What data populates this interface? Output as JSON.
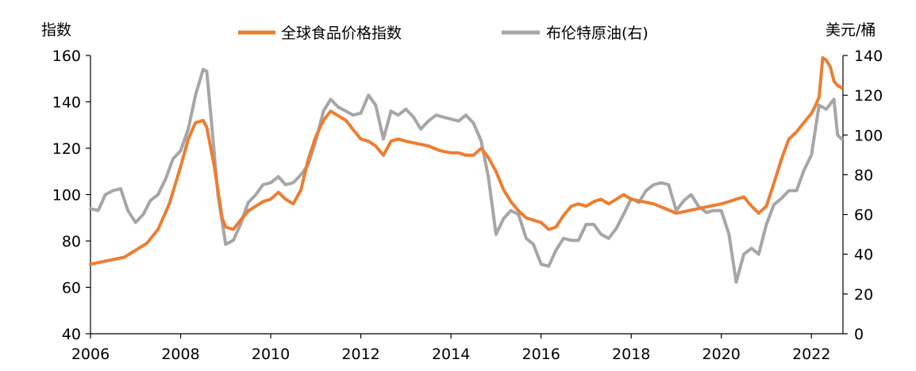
{
  "chart_data": {
    "type": "line",
    "title": "",
    "left_axis": {
      "unit_label": "指数",
      "ylim": [
        40,
        160
      ],
      "ticks": [
        "40",
        "60",
        "80",
        "100",
        "120",
        "140",
        "160"
      ]
    },
    "right_axis": {
      "unit_label": "美元/桶",
      "ylim": [
        0,
        140
      ],
      "ticks": [
        "0",
        "20",
        "40",
        "60",
        "80",
        "100",
        "120",
        "140"
      ]
    },
    "x_axis": {
      "xlim": [
        2006.0,
        2022.7
      ],
      "ticks": [
        "2006",
        "2008",
        "2010",
        "2012",
        "2014",
        "2016",
        "2018",
        "2020",
        "2022"
      ]
    },
    "grid": false,
    "legend": {
      "position": "top",
      "entries": [
        "全球食品价格指数",
        "布伦特原油(右)"
      ]
    },
    "series": [
      {
        "name": "全球食品价格指数",
        "axis": "left",
        "color": "#ED7D31",
        "x": [
          2006.0,
          2006.25,
          2006.5,
          2006.75,
          2007.0,
          2007.25,
          2007.5,
          2007.75,
          2008.0,
          2008.17,
          2008.33,
          2008.5,
          2008.58,
          2008.75,
          2008.92,
          2009.0,
          2009.17,
          2009.33,
          2009.5,
          2009.67,
          2009.83,
          2010.0,
          2010.17,
          2010.33,
          2010.5,
          2010.67,
          2010.83,
          2011.0,
          2011.17,
          2011.33,
          2011.5,
          2011.67,
          2011.83,
          2012.0,
          2012.17,
          2012.33,
          2012.5,
          2012.67,
          2012.83,
          2013.0,
          2013.25,
          2013.5,
          2013.75,
          2014.0,
          2014.17,
          2014.33,
          2014.5,
          2014.67,
          2014.83,
          2015.0,
          2015.17,
          2015.33,
          2015.5,
          2015.67,
          2015.83,
          2016.0,
          2016.17,
          2016.33,
          2016.5,
          2016.67,
          2016.83,
          2017.0,
          2017.17,
          2017.33,
          2017.5,
          2017.67,
          2017.83,
          2018.0,
          2018.25,
          2018.5,
          2018.75,
          2019.0,
          2019.25,
          2019.5,
          2019.75,
          2020.0,
          2020.17,
          2020.33,
          2020.5,
          2020.67,
          2020.83,
          2021.0,
          2021.17,
          2021.33,
          2021.5,
          2021.67,
          2021.83,
          2022.0,
          2022.08,
          2022.17,
          2022.25,
          2022.33,
          2022.42,
          2022.5,
          2022.58,
          2022.67
        ],
        "values": [
          70,
          71,
          72,
          73,
          76,
          79,
          85,
          96,
          112,
          124,
          131,
          132,
          129,
          112,
          90,
          86,
          85,
          89,
          93,
          95,
          97,
          98,
          101,
          98,
          96,
          102,
          115,
          125,
          132,
          136,
          134,
          132,
          128,
          124,
          123,
          121,
          117,
          123,
          124,
          123,
          122,
          121,
          119,
          118,
          118,
          117,
          117,
          120,
          116,
          110,
          102,
          97,
          93,
          90,
          89,
          88,
          85,
          86,
          91,
          95,
          96,
          95,
          97,
          98,
          96,
          98,
          100,
          98,
          97,
          96,
          94,
          92,
          93,
          94,
          95,
          96,
          97,
          98,
          99,
          95,
          92,
          95,
          105,
          115,
          124,
          127,
          131,
          135,
          138,
          142,
          159,
          158,
          155,
          149,
          147,
          146
        ]
      },
      {
        "name": "布伦特原油(右)",
        "axis": "right",
        "color": "#A6A6A6",
        "x": [
          2006.0,
          2006.17,
          2006.33,
          2006.5,
          2006.67,
          2006.83,
          2007.0,
          2007.17,
          2007.33,
          2007.5,
          2007.67,
          2007.83,
          2008.0,
          2008.17,
          2008.33,
          2008.5,
          2008.58,
          2008.67,
          2008.83,
          2009.0,
          2009.17,
          2009.33,
          2009.5,
          2009.67,
          2009.83,
          2010.0,
          2010.17,
          2010.33,
          2010.5,
          2010.67,
          2010.83,
          2011.0,
          2011.17,
          2011.33,
          2011.5,
          2011.67,
          2011.83,
          2012.0,
          2012.17,
          2012.33,
          2012.5,
          2012.67,
          2012.83,
          2013.0,
          2013.17,
          2013.33,
          2013.5,
          2013.67,
          2013.83,
          2014.0,
          2014.17,
          2014.33,
          2014.5,
          2014.67,
          2014.83,
          2015.0,
          2015.17,
          2015.33,
          2015.5,
          2015.67,
          2015.83,
          2016.0,
          2016.17,
          2016.33,
          2016.5,
          2016.67,
          2016.83,
          2017.0,
          2017.17,
          2017.33,
          2017.5,
          2017.67,
          2017.83,
          2018.0,
          2018.17,
          2018.33,
          2018.5,
          2018.67,
          2018.83,
          2019.0,
          2019.17,
          2019.33,
          2019.5,
          2019.67,
          2019.83,
          2020.0,
          2020.17,
          2020.33,
          2020.5,
          2020.67,
          2020.83,
          2021.0,
          2021.17,
          2021.33,
          2021.5,
          2021.67,
          2021.83,
          2022.0,
          2022.17,
          2022.33,
          2022.5,
          2022.58,
          2022.67
        ],
        "values": [
          63,
          62,
          70,
          72,
          73,
          62,
          56,
          60,
          67,
          70,
          78,
          88,
          92,
          103,
          120,
          133,
          132,
          110,
          70,
          45,
          47,
          55,
          66,
          70,
          75,
          76,
          79,
          75,
          76,
          80,
          85,
          97,
          112,
          118,
          114,
          112,
          110,
          111,
          120,
          115,
          98,
          112,
          110,
          113,
          109,
          103,
          107,
          110,
          109,
          108,
          107,
          110,
          106,
          97,
          79,
          50,
          58,
          62,
          60,
          48,
          45,
          35,
          34,
          42,
          48,
          47,
          47,
          55,
          55,
          50,
          48,
          53,
          60,
          68,
          66,
          72,
          75,
          76,
          75,
          62,
          67,
          70,
          64,
          61,
          62,
          62,
          50,
          26,
          40,
          43,
          40,
          55,
          65,
          68,
          72,
          72,
          82,
          90,
          115,
          113,
          118,
          100,
          98
        ]
      }
    ]
  }
}
